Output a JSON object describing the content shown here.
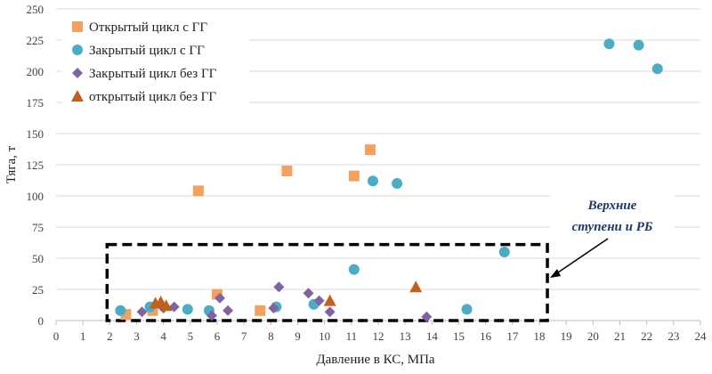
{
  "chart_data": {
    "type": "scatter",
    "xlabel": "Давление в КС, МПа",
    "ylabel": "Тяга, т",
    "xlim": [
      0,
      24
    ],
    "ylim": [
      0,
      250
    ],
    "xticks": [
      0,
      1,
      2,
      3,
      4,
      5,
      6,
      7,
      8,
      9,
      10,
      11,
      12,
      13,
      14,
      15,
      16,
      17,
      18,
      19,
      20,
      21,
      22,
      23,
      24
    ],
    "yticks": [
      0,
      25,
      50,
      75,
      100,
      125,
      150,
      175,
      200,
      225,
      250
    ],
    "grid": "horizontal",
    "legend_position": "top-left",
    "series": [
      {
        "name": "Открытый цикл с ГГ",
        "marker": "square",
        "color": "#f4a15d",
        "points": [
          [
            2.6,
            5
          ],
          [
            3.6,
            8
          ],
          [
            5.3,
            104
          ],
          [
            6.0,
            21
          ],
          [
            7.6,
            8
          ],
          [
            8.6,
            120
          ],
          [
            11.1,
            116
          ],
          [
            11.7,
            137
          ]
        ]
      },
      {
        "name": "Закрытый цикл с ГГ",
        "marker": "circle",
        "color": "#4bacc6",
        "points": [
          [
            2.4,
            8
          ],
          [
            3.5,
            11
          ],
          [
            4.9,
            9
          ],
          [
            5.7,
            8
          ],
          [
            8.2,
            11
          ],
          [
            9.6,
            13
          ],
          [
            11.1,
            41
          ],
          [
            11.8,
            112
          ],
          [
            12.7,
            110
          ],
          [
            15.3,
            9
          ],
          [
            16.7,
            55
          ],
          [
            20.6,
            222
          ],
          [
            21.7,
            221
          ],
          [
            22.4,
            202
          ]
        ]
      },
      {
        "name": "Закрытый цикл без ГГ",
        "marker": "diamond",
        "color": "#8064a2",
        "points": [
          [
            3.2,
            7
          ],
          [
            4.0,
            10
          ],
          [
            4.4,
            11
          ],
          [
            5.8,
            4
          ],
          [
            6.1,
            18
          ],
          [
            6.4,
            8
          ],
          [
            8.1,
            10
          ],
          [
            8.3,
            27
          ],
          [
            9.4,
            22
          ],
          [
            9.8,
            16
          ],
          [
            10.2,
            7
          ],
          [
            13.8,
            3
          ]
        ]
      },
      {
        "name": "открытый цикл без ГГ",
        "marker": "triangle",
        "color": "#c0601a",
        "points": [
          [
            3.7,
            14
          ],
          [
            3.9,
            15
          ],
          [
            4.1,
            12
          ],
          [
            10.2,
            16
          ],
          [
            13.4,
            27
          ]
        ]
      }
    ],
    "annotation": {
      "lines": [
        "Верхние",
        "ступени и РБ"
      ],
      "box": {
        "x_range": [
          1.9,
          18.3
        ],
        "y_range": [
          0,
          61
        ]
      }
    }
  }
}
